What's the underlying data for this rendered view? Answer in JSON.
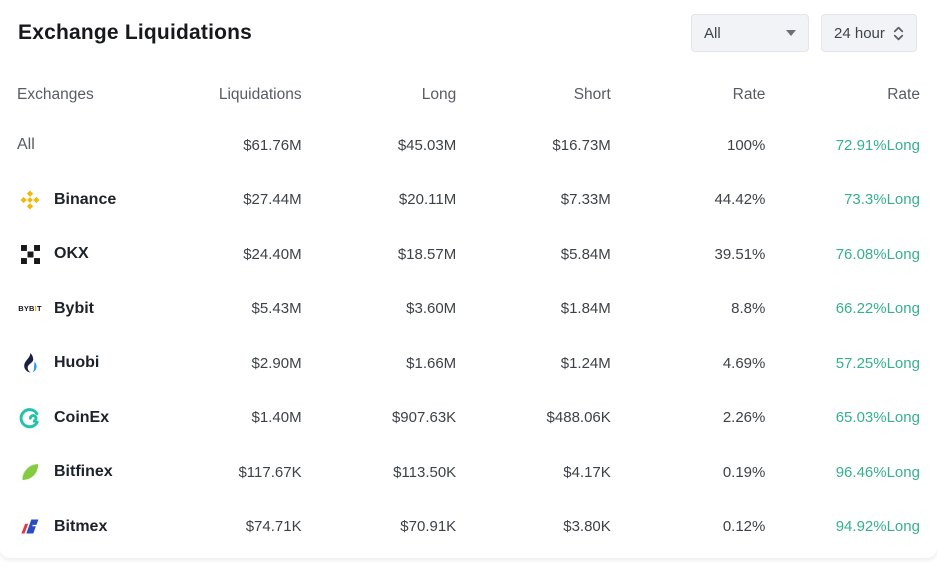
{
  "header": {
    "title": "Exchange Liquidations"
  },
  "filters": {
    "exchange": {
      "value": "All",
      "icon": "caret-down-icon"
    },
    "time": {
      "value": "24 hour",
      "icon": "updown-arrows-icon"
    }
  },
  "table": {
    "columns": [
      "Exchanges",
      "Liquidations",
      "Long",
      "Short",
      "Rate",
      "Rate"
    ],
    "rows": [
      {
        "exchange": "All",
        "icon": "",
        "liquidations": "$61.76M",
        "long": "$45.03M",
        "short": "$16.73M",
        "rate": "100%",
        "long_rate": "72.91%Long"
      },
      {
        "exchange": "Binance",
        "icon": "binance-icon",
        "liquidations": "$27.44M",
        "long": "$20.11M",
        "short": "$7.33M",
        "rate": "44.42%",
        "long_rate": "73.3%Long"
      },
      {
        "exchange": "OKX",
        "icon": "okx-icon",
        "liquidations": "$24.40M",
        "long": "$18.57M",
        "short": "$5.84M",
        "rate": "39.51%",
        "long_rate": "76.08%Long"
      },
      {
        "exchange": "Bybit",
        "icon": "bybit-icon",
        "liquidations": "$5.43M",
        "long": "$3.60M",
        "short": "$1.84M",
        "rate": "8.8%",
        "long_rate": "66.22%Long"
      },
      {
        "exchange": "Huobi",
        "icon": "huobi-icon",
        "liquidations": "$2.90M",
        "long": "$1.66M",
        "short": "$1.24M",
        "rate": "4.69%",
        "long_rate": "57.25%Long"
      },
      {
        "exchange": "CoinEx",
        "icon": "coinex-icon",
        "liquidations": "$1.40M",
        "long": "$907.63K",
        "short": "$488.06K",
        "rate": "2.26%",
        "long_rate": "65.03%Long"
      },
      {
        "exchange": "Bitfinex",
        "icon": "bitfinex-icon",
        "liquidations": "$117.67K",
        "long": "$113.50K",
        "short": "$4.17K",
        "rate": "0.19%",
        "long_rate": "96.46%Long"
      },
      {
        "exchange": "Bitmex",
        "icon": "bitmex-icon",
        "liquidations": "$74.71K",
        "long": "$70.91K",
        "short": "$3.80K",
        "rate": "0.12%",
        "long_rate": "94.92%Long"
      }
    ]
  },
  "colors": {
    "long_rate_teal": "#36b08e",
    "binance_yellow": "#f0b90b",
    "bybit_orange": "#f7a600",
    "okx_black": "#17181b",
    "huobi_navy": "#1b2143",
    "huobi_blue": "#2f9be4",
    "coinex_teal": "#22c3ab",
    "bitfinex_green_dark": "#3e9c35",
    "bitfinex_green_light": "#84cb40",
    "bitmex_red": "#e4383f",
    "bitmex_blue": "#2b4bc0"
  }
}
